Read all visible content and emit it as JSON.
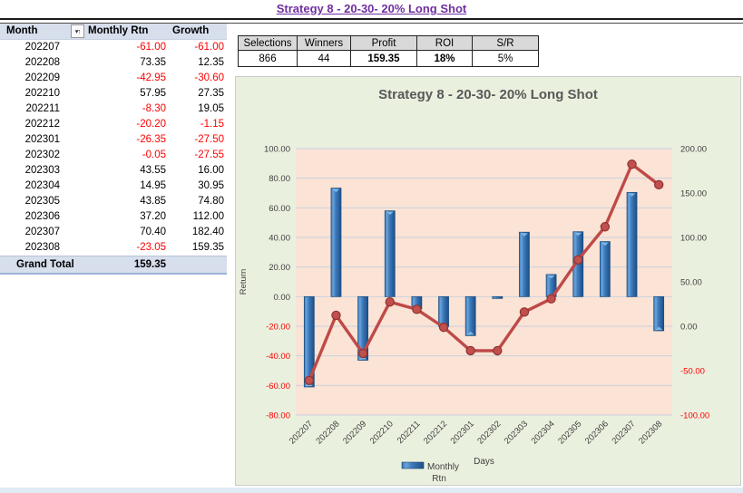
{
  "sheet_title": "Strategy 8 - 20-30- 20% Long Shot",
  "table": {
    "headers": [
      "Month",
      "Monthly Rtn",
      "Growth"
    ],
    "filter_glyph": "▾↑",
    "rows": [
      [
        "202207",
        "-61.00",
        "-61.00"
      ],
      [
        "202208",
        "73.35",
        "12.35"
      ],
      [
        "202209",
        "-42.95",
        "-30.60"
      ],
      [
        "202210",
        "57.95",
        "27.35"
      ],
      [
        "202211",
        "-8.30",
        "19.05"
      ],
      [
        "202212",
        "-20.20",
        "-1.15"
      ],
      [
        "202301",
        "-26.35",
        "-27.50"
      ],
      [
        "202302",
        "-0.05",
        "-27.55"
      ],
      [
        "202303",
        "43.55",
        "16.00"
      ],
      [
        "202304",
        "14.95",
        "30.95"
      ],
      [
        "202305",
        "43.85",
        "74.80"
      ],
      [
        "202306",
        "37.20",
        "112.00"
      ],
      [
        "202307",
        "70.40",
        "182.40"
      ],
      [
        "202308",
        "-23.05",
        "159.35"
      ]
    ],
    "grand_total": {
      "label": "Grand Total",
      "value": "159.35"
    }
  },
  "summary": {
    "columns": [
      {
        "header": "Selections",
        "value": "866",
        "bold": false
      },
      {
        "header": "Winners",
        "value": "44",
        "bold": false
      },
      {
        "header": "Profit",
        "value": "159.35",
        "bold": true
      },
      {
        "header": "ROI",
        "value": "18%",
        "bold": true
      },
      {
        "header": "S/R",
        "value": "5%",
        "bold": false
      }
    ]
  },
  "chart_data": {
    "type": "bar",
    "subtype": "combo-bar-line-dual-axis",
    "title": "Strategy 8 - 20-30- 20% Long Shot",
    "categories": [
      "202207",
      "202208",
      "202209",
      "202210",
      "202211",
      "202212",
      "202301",
      "202302",
      "202303",
      "202304",
      "202305",
      "202306",
      "202307",
      "202308"
    ],
    "series": [
      {
        "name": "Monthly Rtn",
        "type": "bar",
        "axis": "primary",
        "color": "#3E7CBC",
        "values": [
          -61.0,
          73.35,
          -42.95,
          57.95,
          -8.3,
          -20.2,
          -26.35,
          -0.05,
          43.55,
          14.95,
          43.85,
          37.2,
          70.4,
          -23.05
        ]
      },
      {
        "name": "Growth",
        "type": "line",
        "axis": "secondary",
        "color": "#BE4A47",
        "values": [
          -61.0,
          12.35,
          -30.6,
          27.35,
          19.05,
          -1.15,
          -27.5,
          -27.55,
          16.0,
          30.95,
          74.8,
          112.0,
          182.4,
          159.35
        ]
      }
    ],
    "xlabel": "Days",
    "ylabel": "Return",
    "primary_axis": {
      "min": -80,
      "max": 100,
      "step": 20
    },
    "secondary_axis": {
      "min": -100,
      "max": 200,
      "step": 50
    },
    "legend": {
      "position": "bottom",
      "entries": [
        "Monthly Rtn"
      ]
    },
    "grid": "horizontal",
    "plot_bg": "#FBE3D5",
    "chart_bg": "#EAF0DE",
    "gridline_color": "#C9D2DE",
    "tick_color": "#3F3F3F",
    "negative_tick_color": "#FF0000"
  },
  "colors": {
    "title": "#7030A0",
    "negative": "#FF0000",
    "table_header_bg": "#D7DEEC",
    "summary_header_bg": "#D9D9D9",
    "chart_title": "#595959"
  }
}
